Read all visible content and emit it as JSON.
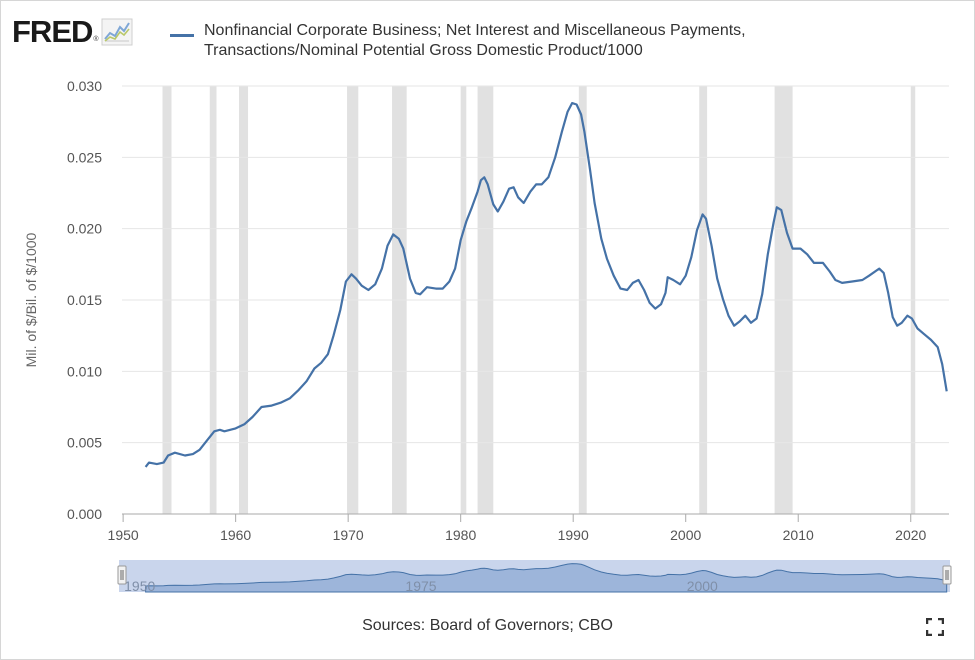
{
  "logo": {
    "text": "FRED",
    "registered": "®"
  },
  "sources_text": "Sources: Board of Governors; CBO",
  "colors": {
    "line": "#4572a7",
    "recession": "#e1e1e1",
    "grid": "#e6e6e6",
    "navigator_fill": "#c9d5ec",
    "navigator_line": "#4572a7"
  },
  "icons": {
    "logo": "fred-chart-icon",
    "fullscreen": "fullscreen-icon"
  },
  "chart_data": {
    "type": "line",
    "title": "Nonfinancial Corporate Business; Net Interest and Miscellaneous Payments, Transactions/Nominal Potential Gross Domestic Product/1000",
    "title_lines": [
      "Nonfinancial Corporate Business; Net Interest and Miscellaneous Payments,",
      "Transactions/Nominal Potential Gross Domestic Product/1000"
    ],
    "ylabel": "Mil. of $/Bil. of $/1000",
    "xlabel": "",
    "xlim": [
      1949.9,
      2023.4
    ],
    "ylim": [
      0,
      0.03
    ],
    "x_ticks": [
      1950,
      1960,
      1970,
      1980,
      1990,
      2000,
      2010,
      2020
    ],
    "y_ticks": [
      "0.000",
      "0.005",
      "0.010",
      "0.015",
      "0.020",
      "0.025",
      "0.030"
    ],
    "grid": "horizontal",
    "legend": "top",
    "navigator_labels": [
      "1950",
      "1975",
      "2000"
    ],
    "recessions": [
      [
        1953.5,
        1954.3
      ],
      [
        1957.7,
        1958.3
      ],
      [
        1960.3,
        1961.1
      ],
      [
        1969.9,
        1970.9
      ],
      [
        1973.9,
        1975.2
      ],
      [
        1980.0,
        1980.5
      ],
      [
        1981.5,
        1982.9
      ],
      [
        1990.5,
        1991.2
      ],
      [
        2001.2,
        2001.9
      ],
      [
        2007.9,
        2009.5
      ],
      [
        2020.0,
        2020.4
      ]
    ],
    "series": [
      {
        "name": "Nonfinancial Corporate Business; Net Interest and Miscellaneous Payments, Transactions/Nominal Potential Gross Domestic Product/1000",
        "points": [
          [
            1952.0,
            0.0033
          ],
          [
            1952.3,
            0.0036
          ],
          [
            1953.0,
            0.0035
          ],
          [
            1953.6,
            0.0036
          ],
          [
            1954.0,
            0.0041
          ],
          [
            1954.6,
            0.0043
          ],
          [
            1955.5,
            0.0041
          ],
          [
            1956.2,
            0.0042
          ],
          [
            1956.8,
            0.0045
          ],
          [
            1957.5,
            0.0052
          ],
          [
            1958.1,
            0.0058
          ],
          [
            1958.6,
            0.0059
          ],
          [
            1959.0,
            0.0058
          ],
          [
            1960.0,
            0.006
          ],
          [
            1960.8,
            0.0063
          ],
          [
            1961.5,
            0.0068
          ],
          [
            1962.3,
            0.0075
          ],
          [
            1963.2,
            0.0076
          ],
          [
            1964.0,
            0.0078
          ],
          [
            1964.8,
            0.0081
          ],
          [
            1965.6,
            0.0087
          ],
          [
            1966.3,
            0.0093
          ],
          [
            1967.0,
            0.0102
          ],
          [
            1967.6,
            0.0106
          ],
          [
            1968.2,
            0.0112
          ],
          [
            1968.7,
            0.0125
          ],
          [
            1969.3,
            0.0143
          ],
          [
            1969.8,
            0.0163
          ],
          [
            1970.3,
            0.0168
          ],
          [
            1970.7,
            0.0165
          ],
          [
            1971.2,
            0.016
          ],
          [
            1971.8,
            0.0157
          ],
          [
            1972.4,
            0.0161
          ],
          [
            1973.0,
            0.0172
          ],
          [
            1973.5,
            0.0188
          ],
          [
            1974.0,
            0.0196
          ],
          [
            1974.5,
            0.0193
          ],
          [
            1974.9,
            0.0186
          ],
          [
            1975.5,
            0.0165
          ],
          [
            1976.0,
            0.0155
          ],
          [
            1976.4,
            0.0154
          ],
          [
            1977.0,
            0.0159
          ],
          [
            1977.8,
            0.0158
          ],
          [
            1978.4,
            0.0158
          ],
          [
            1979.0,
            0.0163
          ],
          [
            1979.5,
            0.0172
          ],
          [
            1980.0,
            0.0192
          ],
          [
            1980.5,
            0.0205
          ],
          [
            1981.0,
            0.0215
          ],
          [
            1981.5,
            0.0226
          ],
          [
            1981.8,
            0.0234
          ],
          [
            1982.1,
            0.0236
          ],
          [
            1982.4,
            0.0231
          ],
          [
            1982.9,
            0.0217
          ],
          [
            1983.3,
            0.0212
          ],
          [
            1983.8,
            0.0219
          ],
          [
            1984.3,
            0.0228
          ],
          [
            1984.7,
            0.0229
          ],
          [
            1985.1,
            0.0222
          ],
          [
            1985.6,
            0.0218
          ],
          [
            1986.2,
            0.0226
          ],
          [
            1986.7,
            0.0231
          ],
          [
            1987.2,
            0.0231
          ],
          [
            1987.8,
            0.0236
          ],
          [
            1988.4,
            0.025
          ],
          [
            1989.0,
            0.0268
          ],
          [
            1989.5,
            0.0282
          ],
          [
            1989.9,
            0.0288
          ],
          [
            1990.3,
            0.0287
          ],
          [
            1990.7,
            0.028
          ],
          [
            1991.0,
            0.0268
          ],
          [
            1991.5,
            0.0241
          ],
          [
            1991.9,
            0.0218
          ],
          [
            1992.5,
            0.0193
          ],
          [
            1993.0,
            0.0179
          ],
          [
            1993.6,
            0.0167
          ],
          [
            1994.2,
            0.0158
          ],
          [
            1994.8,
            0.0157
          ],
          [
            1995.3,
            0.0162
          ],
          [
            1995.8,
            0.0164
          ],
          [
            1996.3,
            0.0157
          ],
          [
            1996.8,
            0.0148
          ],
          [
            1997.3,
            0.0144
          ],
          [
            1997.8,
            0.0147
          ],
          [
            1998.2,
            0.0155
          ],
          [
            1998.4,
            0.0166
          ],
          [
            1998.9,
            0.0164
          ],
          [
            1999.5,
            0.0161
          ],
          [
            2000.0,
            0.0167
          ],
          [
            2000.5,
            0.018
          ],
          [
            2001.0,
            0.0199
          ],
          [
            2001.5,
            0.021
          ],
          [
            2001.8,
            0.0207
          ],
          [
            2002.3,
            0.0188
          ],
          [
            2002.8,
            0.0165
          ],
          [
            2003.3,
            0.0151
          ],
          [
            2003.8,
            0.0139
          ],
          [
            2004.3,
            0.0132
          ],
          [
            2004.8,
            0.0135
          ],
          [
            2005.3,
            0.0139
          ],
          [
            2005.8,
            0.0134
          ],
          [
            2006.3,
            0.0137
          ],
          [
            2006.8,
            0.0154
          ],
          [
            2007.3,
            0.0182
          ],
          [
            2007.8,
            0.0204
          ],
          [
            2008.1,
            0.0215
          ],
          [
            2008.5,
            0.0213
          ],
          [
            2009.0,
            0.0197
          ],
          [
            2009.5,
            0.0186
          ],
          [
            2010.2,
            0.0186
          ],
          [
            2010.8,
            0.0182
          ],
          [
            2011.4,
            0.0176
          ],
          [
            2012.2,
            0.0176
          ],
          [
            2012.8,
            0.017
          ],
          [
            2013.3,
            0.0164
          ],
          [
            2013.9,
            0.0162
          ],
          [
            2014.8,
            0.0163
          ],
          [
            2015.7,
            0.0164
          ],
          [
            2016.3,
            0.0167
          ],
          [
            2017.2,
            0.0172
          ],
          [
            2017.6,
            0.0169
          ],
          [
            2018.0,
            0.0155
          ],
          [
            2018.4,
            0.0138
          ],
          [
            2018.8,
            0.0132
          ],
          [
            2019.2,
            0.0134
          ],
          [
            2019.7,
            0.0139
          ],
          [
            2020.1,
            0.0137
          ],
          [
            2020.6,
            0.013
          ],
          [
            2021.2,
            0.0126
          ],
          [
            2021.8,
            0.0122
          ],
          [
            2022.4,
            0.0117
          ],
          [
            2022.8,
            0.0105
          ],
          [
            2023.2,
            0.0086
          ]
        ]
      }
    ]
  }
}
